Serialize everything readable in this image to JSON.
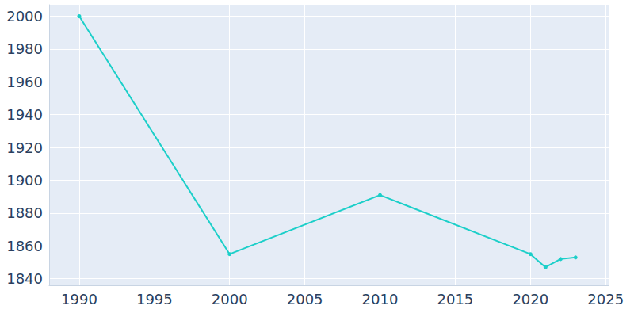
{
  "chart_data": {
    "type": "line",
    "x": [
      1990,
      2000,
      2010,
      2020,
      2021,
      2022,
      2023
    ],
    "values": [
      2000,
      1855,
      1891,
      1855,
      1847,
      1852,
      1853
    ],
    "color": "#1ccfc9",
    "marker": "circle",
    "xlim": [
      1988,
      2025.2
    ],
    "xticks": [
      1990,
      1995,
      2000,
      2005,
      2010,
      2015,
      2020,
      2025
    ],
    "ylim": [
      1836,
      2007
    ],
    "yticks": [
      1840,
      1860,
      1880,
      1900,
      1920,
      1940,
      1960,
      1980,
      2000
    ],
    "grid": true
  }
}
